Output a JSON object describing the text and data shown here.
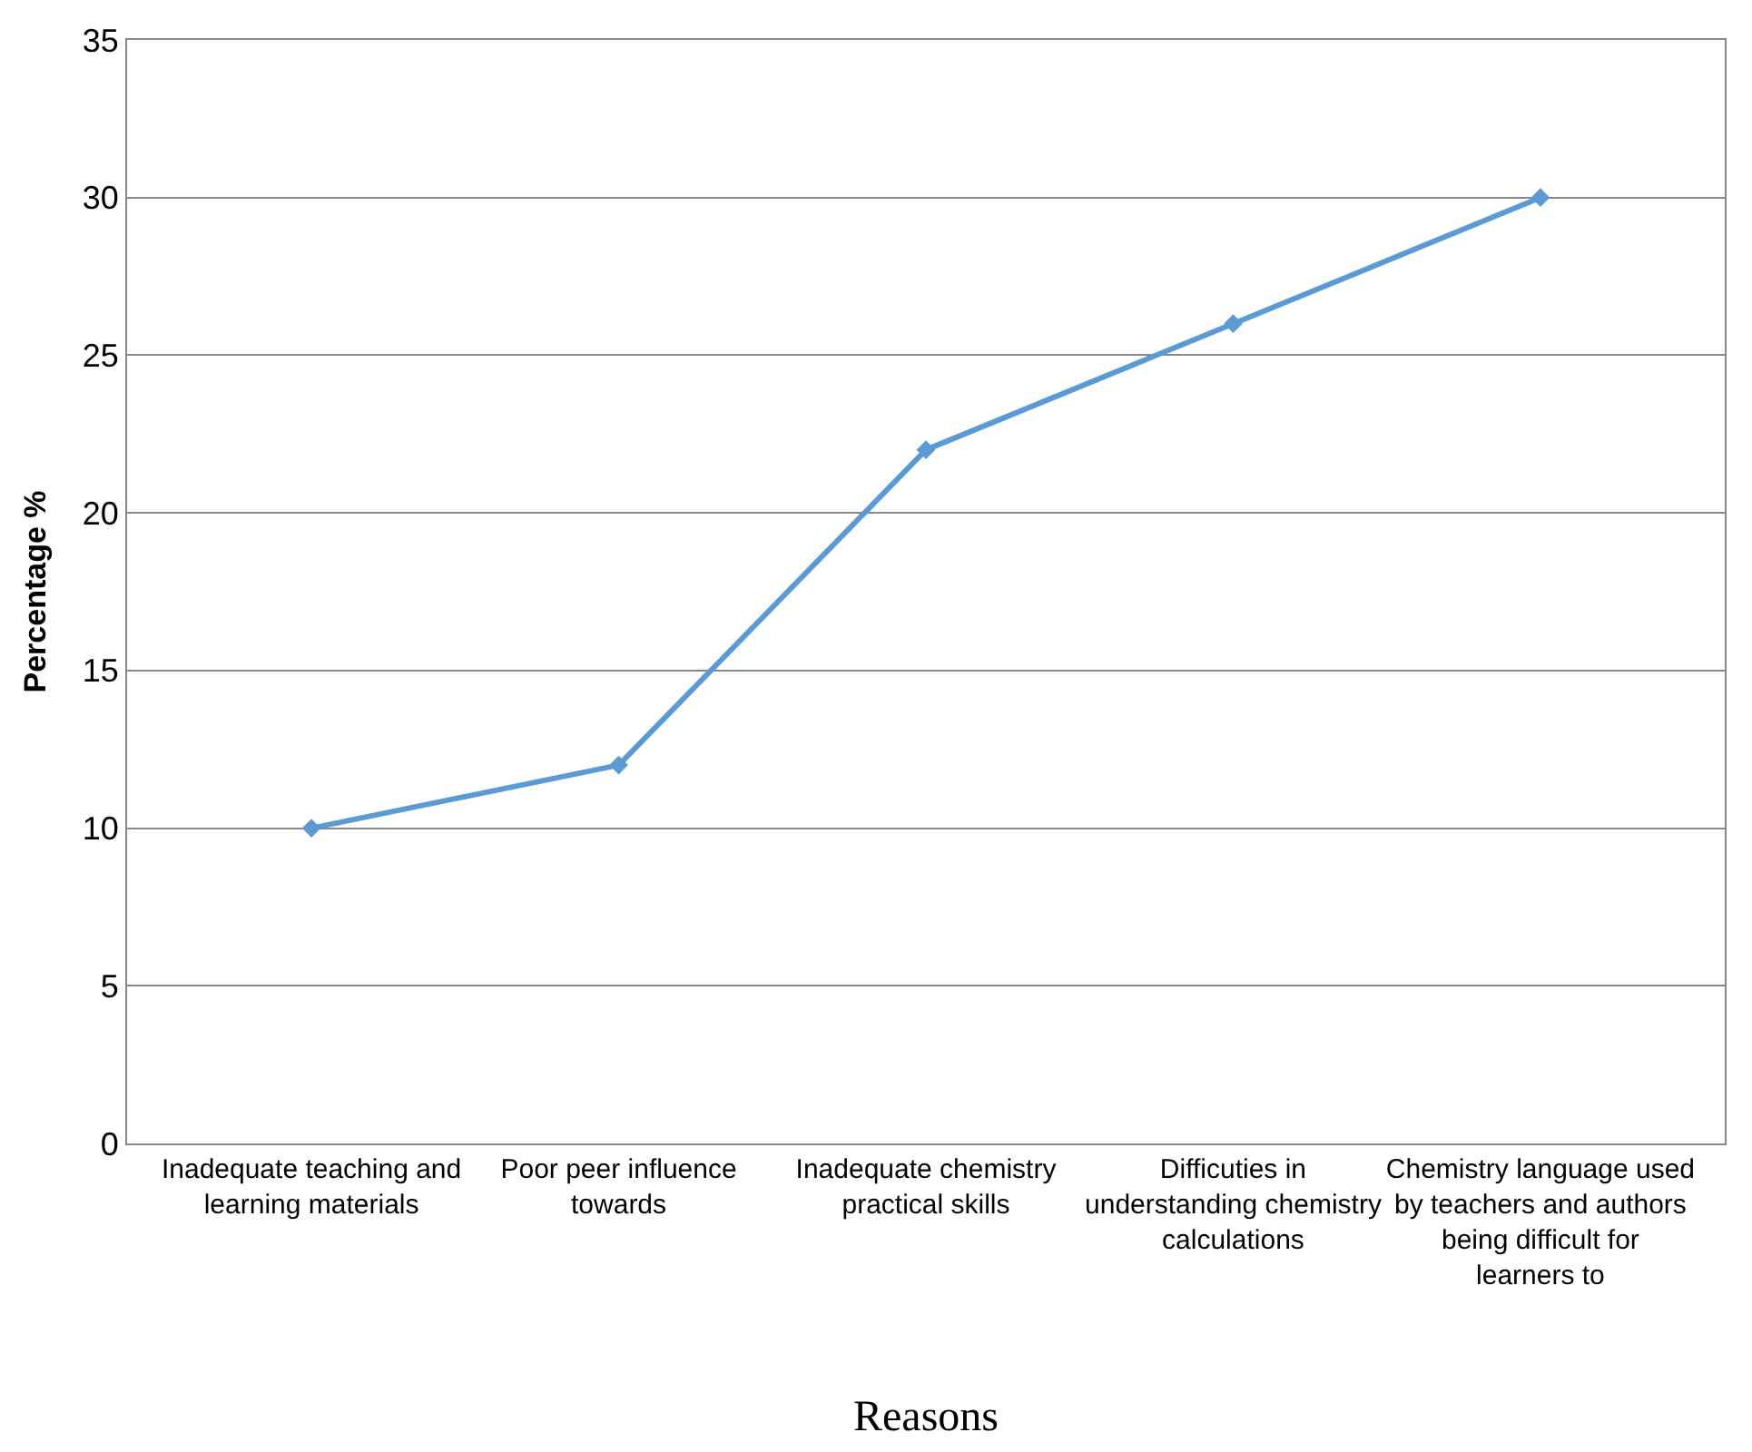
{
  "chart_data": {
    "type": "line",
    "xlabel": "Reasons",
    "ylabel": "Percentage %",
    "categories": [
      "Inadequate teaching and learning materials",
      "Poor peer influence towards",
      "Inadequate chemistry practical skills",
      "Difficuties in understanding chemistry calculations",
      "Chemistry language used by teachers and authors being difficult for learners to"
    ],
    "series": [
      {
        "color": "#5b9bd5",
        "values": [
          10,
          12,
          22,
          26,
          30
        ]
      }
    ],
    "ylim": [
      0,
      35
    ],
    "yticks": [
      0,
      5,
      10,
      15,
      20,
      25,
      30,
      35
    ],
    "grid": "y",
    "legend": false,
    "marker": "diamond",
    "line_style": "solid"
  }
}
